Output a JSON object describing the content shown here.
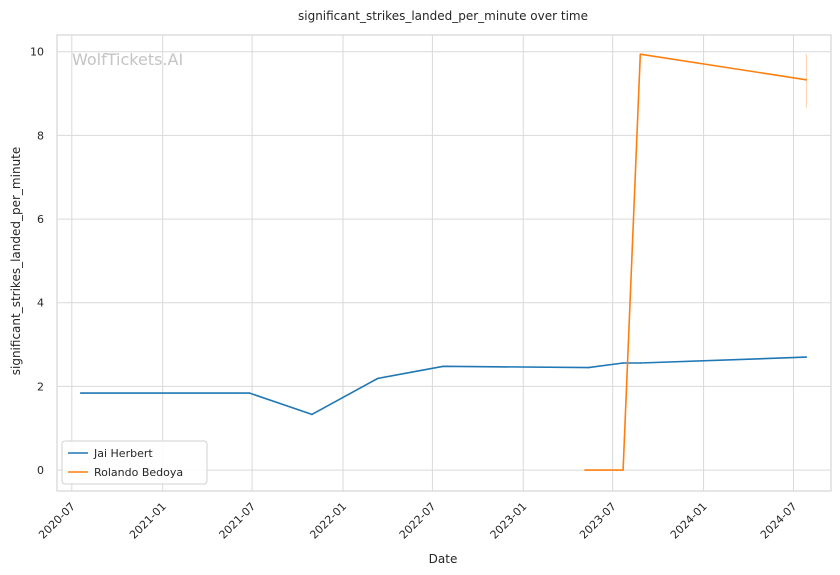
{
  "chart_data": {
    "type": "line",
    "title": "significant_strikes_landed_per_minute over time",
    "xlabel": "Date",
    "ylabel": "significant_strikes_landed_per_minute",
    "watermark": "WolfTickets.AI",
    "x_ticks": [
      "2020-07",
      "2021-01",
      "2021-07",
      "2022-01",
      "2022-07",
      "2023-01",
      "2023-07",
      "2024-01",
      "2024-07"
    ],
    "y_ticks": [
      0,
      2,
      4,
      6,
      8,
      10
    ],
    "xlim": [
      "2020-06-01",
      "2024-09-15"
    ],
    "ylim": [
      -0.5,
      10.4
    ],
    "grid": true,
    "legend_position": "lower-left",
    "series": [
      {
        "name": "Jai Herbert",
        "color": "#1f77b4",
        "points": [
          {
            "x": "2020-07-19",
            "y": 1.84
          },
          {
            "x": "2021-06-26",
            "y": 1.84
          },
          {
            "x": "2021-10-30",
            "y": 1.33
          },
          {
            "x": "2022-03-12",
            "y": 2.19
          },
          {
            "x": "2022-07-23",
            "y": 2.48
          },
          {
            "x": "2023-05-13",
            "y": 2.45
          },
          {
            "x": "2023-07-22",
            "y": 2.56
          },
          {
            "x": "2023-08-26",
            "y": 2.56
          },
          {
            "x": "2024-07-27",
            "y": 2.7
          }
        ]
      },
      {
        "name": "Rolando Bedoya",
        "color": "#ff7f0e",
        "points": [
          {
            "x": "2023-05-06",
            "y": 0.0
          },
          {
            "x": "2023-07-22",
            "y": 0.0
          },
          {
            "x": "2023-08-26",
            "y": 9.94
          },
          {
            "x": "2024-07-27",
            "y": 9.33
          }
        ],
        "error_bar": {
          "x": "2024-07-27",
          "low": 8.65,
          "high": 9.95
        }
      }
    ]
  }
}
